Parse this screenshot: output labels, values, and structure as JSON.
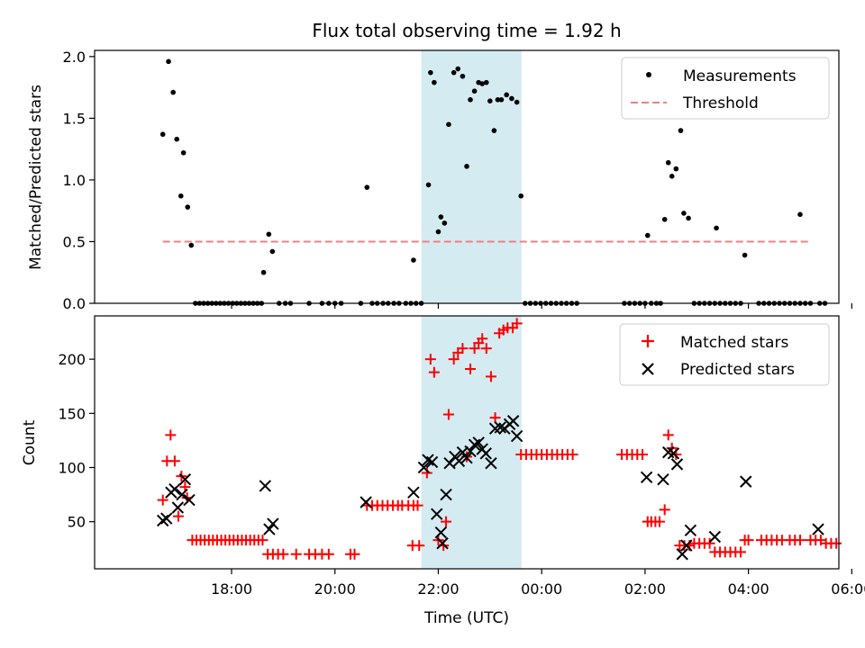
{
  "chart_data": {
    "title": "Flux total observing time = 1.92 h",
    "xlabel": "Time (UTC)",
    "x_units": "hours since 16:00 UTC",
    "xlim": [
      -0.65,
      13.75
    ],
    "xtick_values": [
      2,
      4,
      6,
      8,
      10,
      12,
      14
    ],
    "xtick_labels": [
      "18:00",
      "20:00",
      "22:00",
      "00:00",
      "02:00",
      "04:00",
      "06:00"
    ],
    "shaded_region": {
      "x0": 5.68,
      "x1": 7.6,
      "color": "#add8e6"
    },
    "colors": {
      "measurements": "#000000",
      "threshold": "#f08080",
      "matched": "#ff0000",
      "predicted": "#000000",
      "shade": "#add8e6"
    },
    "top": {
      "type": "scatter",
      "ylabel": "Matched/Predicted stars",
      "ylim": [
        0,
        2.05
      ],
      "yticks": [
        0.0,
        0.5,
        1.0,
        1.5,
        2.0
      ],
      "ytick_labels": [
        "0.0",
        "0.5",
        "1.0",
        "1.5",
        "2.0"
      ],
      "legend_position": "top-right",
      "measurements_label": "Measurements",
      "threshold_label": "Threshold",
      "threshold": {
        "value": 0.5,
        "x0": 0.67,
        "x1": 13.2
      },
      "measurements": [
        [
          0.67,
          1.37
        ],
        [
          0.78,
          1.96
        ],
        [
          0.87,
          1.71
        ],
        [
          0.94,
          1.33
        ],
        [
          1.02,
          0.87
        ],
        [
          1.07,
          1.22
        ],
        [
          1.15,
          0.78
        ],
        [
          1.22,
          0.47
        ],
        [
          1.3,
          0
        ],
        [
          1.38,
          0
        ],
        [
          1.46,
          0
        ],
        [
          1.54,
          0
        ],
        [
          1.62,
          0
        ],
        [
          1.7,
          0
        ],
        [
          1.78,
          0
        ],
        [
          1.86,
          0
        ],
        [
          1.94,
          0
        ],
        [
          2.02,
          0
        ],
        [
          2.1,
          0
        ],
        [
          2.18,
          0
        ],
        [
          2.26,
          0
        ],
        [
          2.34,
          0
        ],
        [
          2.42,
          0
        ],
        [
          2.5,
          0
        ],
        [
          2.58,
          0
        ],
        [
          2.62,
          0.25
        ],
        [
          2.72,
          0.56
        ],
        [
          2.79,
          0.42
        ],
        [
          2.92,
          0
        ],
        [
          3.04,
          0
        ],
        [
          3.14,
          0
        ],
        [
          3.5,
          0
        ],
        [
          3.75,
          0
        ],
        [
          3.88,
          0
        ],
        [
          4.0,
          0
        ],
        [
          4.12,
          0
        ],
        [
          4.5,
          0
        ],
        [
          4.62,
          0.94
        ],
        [
          4.72,
          0
        ],
        [
          4.82,
          0
        ],
        [
          4.93,
          0
        ],
        [
          5.03,
          0
        ],
        [
          5.14,
          0
        ],
        [
          5.24,
          0
        ],
        [
          5.37,
          0
        ],
        [
          5.47,
          0
        ],
        [
          5.57,
          0
        ],
        [
          5.67,
          0
        ],
        [
          5.52,
          0.35
        ],
        [
          5.85,
          1.87
        ],
        [
          5.92,
          1.79
        ],
        [
          6.0,
          0.58
        ],
        [
          6.05,
          0.7
        ],
        [
          5.81,
          0.96
        ],
        [
          6.12,
          0.65
        ],
        [
          6.2,
          1.45
        ],
        [
          6.3,
          1.87
        ],
        [
          6.38,
          1.9
        ],
        [
          6.47,
          1.84
        ],
        [
          6.55,
          1.11
        ],
        [
          6.62,
          1.65
        ],
        [
          6.7,
          1.72
        ],
        [
          6.78,
          1.79
        ],
        [
          6.85,
          1.78
        ],
        [
          6.93,
          1.79
        ],
        [
          7.0,
          1.64
        ],
        [
          7.08,
          1.4
        ],
        [
          7.15,
          1.65
        ],
        [
          7.22,
          1.65
        ],
        [
          7.32,
          1.69
        ],
        [
          7.42,
          1.66
        ],
        [
          7.52,
          1.63
        ],
        [
          7.6,
          0.87
        ],
        [
          7.68,
          0
        ],
        [
          7.78,
          0
        ],
        [
          7.88,
          0
        ],
        [
          7.98,
          0
        ],
        [
          8.08,
          0
        ],
        [
          8.18,
          0
        ],
        [
          8.28,
          0
        ],
        [
          8.38,
          0
        ],
        [
          8.48,
          0
        ],
        [
          8.58,
          0
        ],
        [
          8.68,
          0
        ],
        [
          9.6,
          0
        ],
        [
          9.7,
          0
        ],
        [
          9.8,
          0
        ],
        [
          9.9,
          0
        ],
        [
          10.0,
          0
        ],
        [
          10.05,
          0.55
        ],
        [
          10.12,
          0
        ],
        [
          10.22,
          0
        ],
        [
          10.3,
          0
        ],
        [
          10.38,
          0.68
        ],
        [
          10.45,
          1.14
        ],
        [
          10.52,
          1.03
        ],
        [
          10.6,
          1.09
        ],
        [
          10.69,
          1.4
        ],
        [
          10.75,
          0.73
        ],
        [
          10.84,
          0.69
        ],
        [
          10.95,
          0
        ],
        [
          11.05,
          0
        ],
        [
          11.15,
          0
        ],
        [
          11.25,
          0
        ],
        [
          11.35,
          0
        ],
        [
          11.38,
          0.61
        ],
        [
          11.45,
          0
        ],
        [
          11.55,
          0
        ],
        [
          11.65,
          0
        ],
        [
          11.75,
          0
        ],
        [
          11.85,
          0
        ],
        [
          11.93,
          0.39
        ],
        [
          12.2,
          0
        ],
        [
          12.3,
          0
        ],
        [
          12.4,
          0
        ],
        [
          12.5,
          0
        ],
        [
          12.6,
          0
        ],
        [
          12.8,
          0
        ],
        [
          12.9,
          0
        ],
        [
          13.0,
          0
        ],
        [
          13.1,
          0
        ],
        [
          13.2,
          0
        ],
        [
          13.38,
          0
        ],
        [
          13.48,
          0
        ],
        [
          12.7,
          0
        ],
        [
          13.0,
          0.72
        ]
      ]
    },
    "bottom": {
      "type": "scatter",
      "ylabel": "Count",
      "ylim": [
        6.5,
        240
      ],
      "yticks": [
        50,
        100,
        150,
        200
      ],
      "ytick_labels": [
        "50",
        "100",
        "150",
        "200"
      ],
      "legend_position": "top-right",
      "matched_label": "Matched stars",
      "predicted_label": "Predicted stars",
      "matched": [
        [
          0.67,
          70
        ],
        [
          0.75,
          106
        ],
        [
          0.82,
          130
        ],
        [
          0.9,
          106
        ],
        [
          0.97,
          55
        ],
        [
          1.03,
          92
        ],
        [
          1.1,
          82
        ],
        [
          1.14,
          72
        ],
        [
          1.24,
          33
        ],
        [
          1.32,
          33
        ],
        [
          1.4,
          33
        ],
        [
          1.48,
          33
        ],
        [
          1.56,
          33
        ],
        [
          1.64,
          33
        ],
        [
          1.72,
          33
        ],
        [
          1.8,
          33
        ],
        [
          1.88,
          33
        ],
        [
          1.96,
          33
        ],
        [
          2.04,
          33
        ],
        [
          2.12,
          33
        ],
        [
          2.2,
          33
        ],
        [
          2.28,
          33
        ],
        [
          2.36,
          33
        ],
        [
          2.44,
          33
        ],
        [
          2.52,
          33
        ],
        [
          2.6,
          33
        ],
        [
          2.7,
          20
        ],
        [
          2.8,
          20
        ],
        [
          2.9,
          20
        ],
        [
          3.0,
          20
        ],
        [
          3.25,
          20
        ],
        [
          3.5,
          20
        ],
        [
          3.62,
          20
        ],
        [
          3.75,
          20
        ],
        [
          3.88,
          20
        ],
        [
          4.3,
          20
        ],
        [
          4.38,
          20
        ],
        [
          4.62,
          65
        ],
        [
          4.72,
          65
        ],
        [
          4.82,
          65
        ],
        [
          4.92,
          65
        ],
        [
          5.02,
          65
        ],
        [
          5.12,
          65
        ],
        [
          5.22,
          65
        ],
        [
          5.3,
          65
        ],
        [
          5.42,
          65
        ],
        [
          5.52,
          65
        ],
        [
          5.6,
          65
        ],
        [
          5.5,
          28
        ],
        [
          5.63,
          28
        ],
        [
          5.78,
          95
        ],
        [
          5.85,
          200
        ],
        [
          5.92,
          188
        ],
        [
          6.0,
          33
        ],
        [
          6.1,
          28
        ],
        [
          6.15,
          50
        ],
        [
          6.2,
          149
        ],
        [
          6.3,
          200
        ],
        [
          6.38,
          206
        ],
        [
          6.47,
          210
        ],
        [
          6.55,
          110
        ],
        [
          6.62,
          191
        ],
        [
          6.7,
          210
        ],
        [
          6.78,
          215
        ],
        [
          6.85,
          219
        ],
        [
          6.93,
          210
        ],
        [
          7.02,
          184
        ],
        [
          7.1,
          146
        ],
        [
          7.18,
          224
        ],
        [
          7.26,
          227
        ],
        [
          7.34,
          229
        ],
        [
          7.44,
          229
        ],
        [
          7.52,
          233
        ],
        [
          7.6,
          112
        ],
        [
          7.7,
          112
        ],
        [
          7.8,
          112
        ],
        [
          7.9,
          112
        ],
        [
          8.0,
          112
        ],
        [
          8.1,
          112
        ],
        [
          8.2,
          112
        ],
        [
          8.3,
          112
        ],
        [
          8.4,
          112
        ],
        [
          8.5,
          112
        ],
        [
          8.6,
          112
        ],
        [
          9.55,
          112
        ],
        [
          9.65,
          112
        ],
        [
          9.75,
          112
        ],
        [
          9.85,
          112
        ],
        [
          9.95,
          112
        ],
        [
          10.05,
          50
        ],
        [
          10.12,
          50
        ],
        [
          10.2,
          50
        ],
        [
          10.28,
          50
        ],
        [
          10.38,
          61
        ],
        [
          10.45,
          130
        ],
        [
          10.52,
          118
        ],
        [
          10.6,
          112
        ],
        [
          10.67,
          28
        ],
        [
          10.76,
          28
        ],
        [
          10.86,
          28
        ],
        [
          10.95,
          30
        ],
        [
          11.05,
          30
        ],
        [
          11.15,
          30
        ],
        [
          11.25,
          30
        ],
        [
          11.35,
          22
        ],
        [
          11.45,
          22
        ],
        [
          11.55,
          22
        ],
        [
          11.65,
          22
        ],
        [
          11.75,
          22
        ],
        [
          11.85,
          22
        ],
        [
          11.93,
          33
        ],
        [
          12.0,
          33
        ],
        [
          12.25,
          33
        ],
        [
          12.35,
          33
        ],
        [
          12.45,
          33
        ],
        [
          12.55,
          33
        ],
        [
          12.65,
          33
        ],
        [
          12.8,
          33
        ],
        [
          12.9,
          33
        ],
        [
          13.0,
          33
        ],
        [
          13.2,
          33
        ],
        [
          13.3,
          33
        ],
        [
          13.4,
          33
        ],
        [
          13.5,
          30
        ],
        [
          13.6,
          30
        ],
        [
          13.7,
          30
        ]
      ],
      "predicted": [
        [
          0.67,
          51
        ],
        [
          0.74,
          53
        ],
        [
          0.83,
          77
        ],
        [
          0.9,
          80
        ],
        [
          0.96,
          63
        ],
        [
          1.04,
          75
        ],
        [
          1.1,
          89
        ],
        [
          1.18,
          70
        ],
        [
          2.65,
          83
        ],
        [
          2.73,
          43
        ],
        [
          2.8,
          48
        ],
        [
          4.6,
          68
        ],
        [
          5.52,
          77
        ],
        [
          5.72,
          100
        ],
        [
          5.8,
          107
        ],
        [
          5.88,
          105
        ],
        [
          5.97,
          57
        ],
        [
          6.05,
          40
        ],
        [
          6.08,
          30
        ],
        [
          6.15,
          75
        ],
        [
          6.22,
          104
        ],
        [
          6.32,
          110
        ],
        [
          6.4,
          106
        ],
        [
          6.47,
          114
        ],
        [
          6.55,
          109
        ],
        [
          6.62,
          115
        ],
        [
          6.7,
          121
        ],
        [
          6.78,
          123
        ],
        [
          6.85,
          117
        ],
        [
          6.92,
          113
        ],
        [
          7.02,
          104
        ],
        [
          7.1,
          136
        ],
        [
          7.2,
          137
        ],
        [
          7.28,
          136
        ],
        [
          7.38,
          140
        ],
        [
          7.45,
          143
        ],
        [
          7.52,
          129
        ],
        [
          10.03,
          91
        ],
        [
          10.35,
          89
        ],
        [
          10.45,
          114
        ],
        [
          10.55,
          113
        ],
        [
          10.62,
          103
        ],
        [
          10.72,
          20
        ],
        [
          10.8,
          28
        ],
        [
          10.88,
          42
        ],
        [
          11.35,
          36
        ],
        [
          11.95,
          87
        ],
        [
          13.35,
          43
        ]
      ]
    }
  }
}
